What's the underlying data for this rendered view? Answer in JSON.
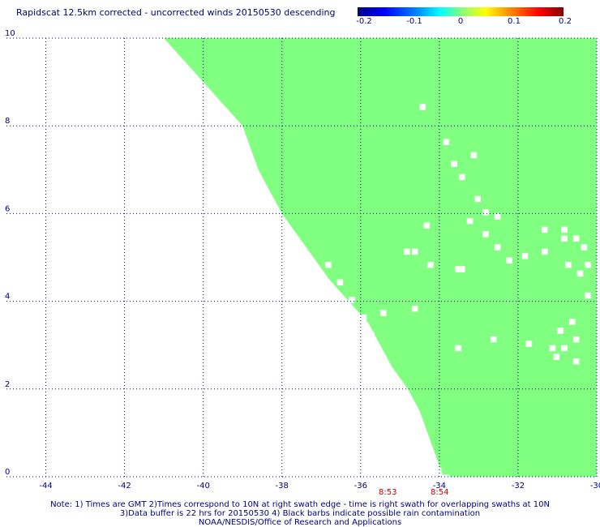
{
  "title": "Rapidscat 12.5km corrected - uncorrected winds 20150530 descending",
  "colorbar": {
    "ticks": [
      "-0.2",
      "-0.1",
      "0",
      "0.1",
      "0.2"
    ],
    "tick_values": [
      -0.2,
      -0.1,
      0,
      0.1,
      0.2
    ]
  },
  "map": {
    "longitudes": [
      -44,
      -42,
      -40,
      -38,
      -36,
      -34,
      -32,
      -30
    ],
    "x_labels": [
      "-44",
      "-42",
      "-40",
      "-38",
      "-36",
      "-34",
      "-32",
      "-30"
    ],
    "latitudes": [
      0,
      2,
      4,
      6,
      8,
      10
    ],
    "y_labels": [
      "0",
      "2",
      "4",
      "6",
      "8",
      "10"
    ],
    "lon_range": [
      -45,
      -30
    ],
    "lat_range": [
      0,
      10
    ],
    "grid": "dotted",
    "fill_color": "#80ff80",
    "swath_edge": [
      [
        10,
        -41
      ],
      [
        9.5,
        -40.5
      ],
      [
        9,
        -40
      ],
      [
        8.5,
        -39.5
      ],
      [
        8,
        -39
      ],
      [
        7.5,
        -38.8
      ],
      [
        7,
        -38.6
      ],
      [
        6.5,
        -38.3
      ],
      [
        6,
        -38
      ],
      [
        5.5,
        -37.6
      ],
      [
        5,
        -37.2
      ],
      [
        4.5,
        -36.8
      ],
      [
        4,
        -36.3
      ],
      [
        3.5,
        -35.8
      ],
      [
        3,
        -35.5
      ],
      [
        2.5,
        -35.2
      ],
      [
        2,
        -34.8
      ],
      [
        1.5,
        -34.5
      ],
      [
        1,
        -34.3
      ],
      [
        0.5,
        -34.1
      ],
      [
        0,
        -33.9
      ]
    ]
  },
  "times": [
    {
      "label": "8:53",
      "lon": -35.3
    },
    {
      "label": "8:54",
      "lon": -34.0
    }
  ],
  "notes": [
    "Note: 1) Times are GMT 2)Times correspond to 10N at right swath edge - time is right swath for overlapping swaths at 10N",
    "3)Data buffer is 22 hrs for 20150530 4) Black barbs indicate possible rain contamination",
    "NOAA/NESDIS/Office of Research and Applications"
  ]
}
